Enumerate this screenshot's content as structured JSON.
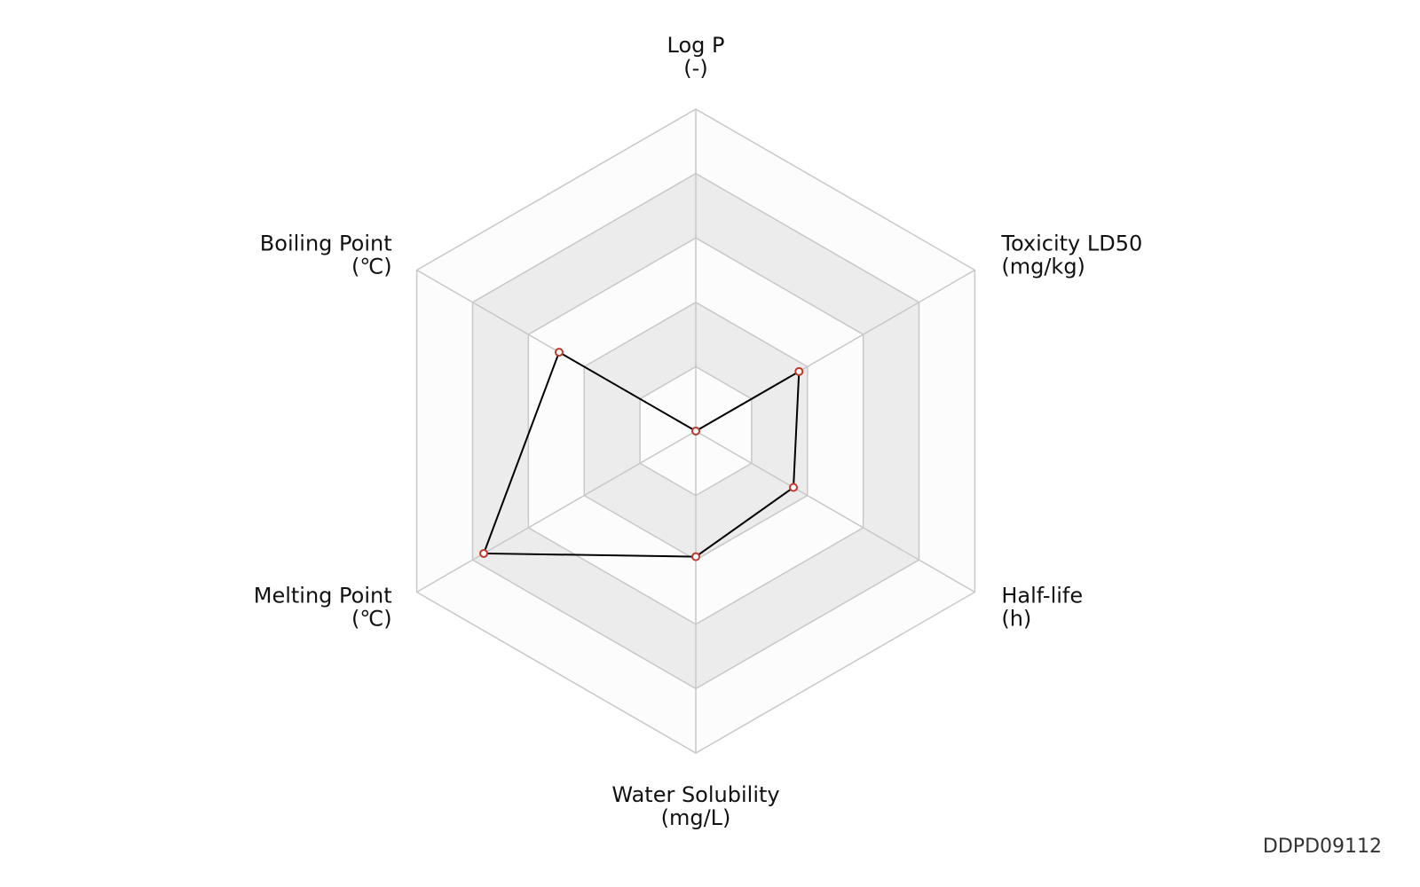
{
  "chart_data": {
    "type": "radar",
    "categories": [
      "Log P",
      "Toxicity LD50",
      "Half-life",
      "Water Solubility",
      "Melting Point",
      "Boiling Point"
    ],
    "units": [
      "(-)",
      "(mg/kg)",
      "(h)",
      "(mg/L)",
      "(℃)",
      "(℃)"
    ],
    "values": [
      0,
      0.37,
      0.35,
      0.39,
      0.76,
      0.49
    ],
    "rlim": [
      0,
      1
    ],
    "rticks": [
      0.2,
      0.4,
      0.6,
      0.8,
      1
    ],
    "line_color": "#000000",
    "marker_color": "#c0392b"
  },
  "watermark": "DDPD09112"
}
